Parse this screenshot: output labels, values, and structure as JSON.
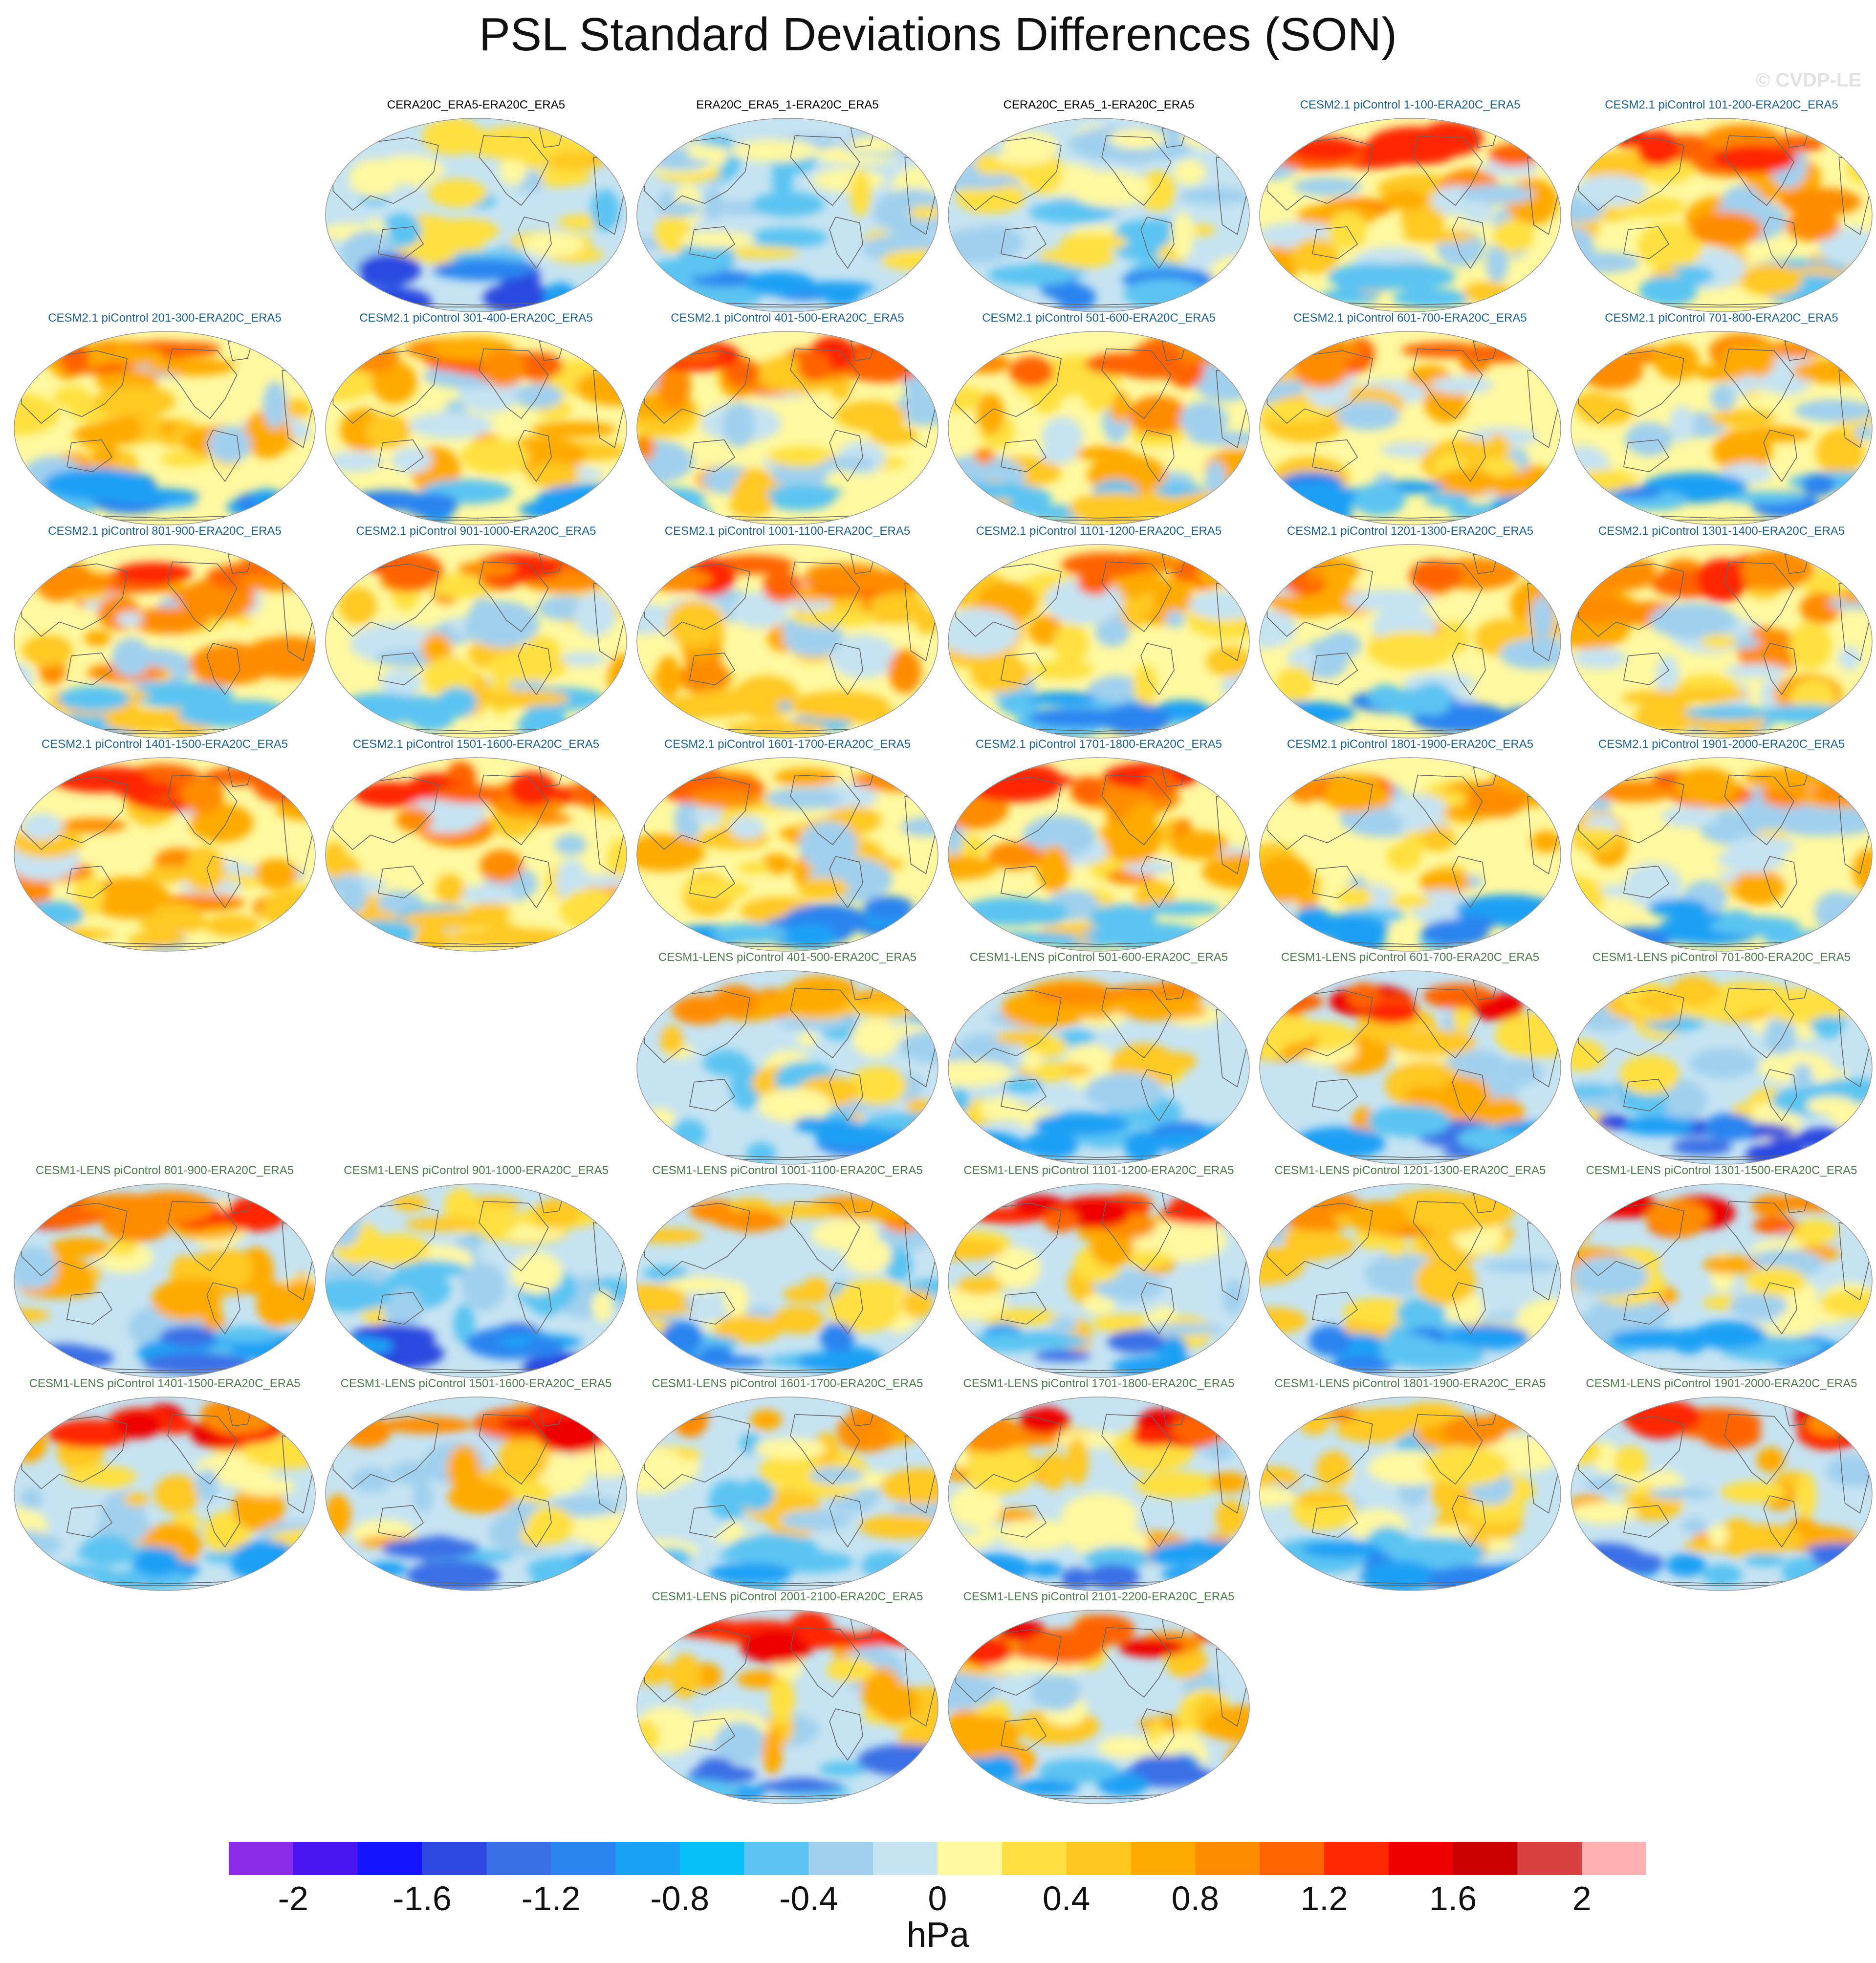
{
  "title": "PSL Standard Deviations Differences (SON)",
  "watermark": "© CVDP-LE",
  "colors": {
    "reanalysis_title": "#000000",
    "cesm2_title": "#1f5f8b",
    "cesm1_title": "#4e7a4e",
    "ocean_base": "#c6e3f2",
    "coast": "#666666",
    "outline": "#9a9a9a"
  },
  "panels": [
    {
      "label": "CERA20C_ERA5-ERA20C_ERA5",
      "group": "reanalysis",
      "row": 0,
      "col": 1,
      "pattern": "neg-south"
    },
    {
      "label": "ERA20C_ERA5_1-ERA20C_ERA5",
      "group": "reanalysis",
      "row": 0,
      "col": 2,
      "pattern": "neg-mild"
    },
    {
      "label": "CERA20C_ERA5_1-ERA20C_ERA5",
      "group": "reanalysis",
      "row": 0,
      "col": 3,
      "pattern": "neg-mild"
    },
    {
      "label": "CESM2.1 piControl 1-100-ERA20C_ERA5",
      "group": "cesm2",
      "row": 0,
      "col": 4,
      "pattern": "warm"
    },
    {
      "label": "CESM2.1 piControl 101-200-ERA20C_ERA5",
      "group": "cesm2",
      "row": 0,
      "col": 5,
      "pattern": "warm"
    },
    {
      "label": "CESM2.1 piControl 201-300-ERA20C_ERA5",
      "group": "cesm2",
      "row": 1,
      "col": 0,
      "pattern": "warm-mix"
    },
    {
      "label": "CESM2.1 piControl 301-400-ERA20C_ERA5",
      "group": "cesm2",
      "row": 1,
      "col": 1,
      "pattern": "warm-mix"
    },
    {
      "label": "CESM2.1 piControl 401-500-ERA20C_ERA5",
      "group": "cesm2",
      "row": 1,
      "col": 2,
      "pattern": "warm"
    },
    {
      "label": "CESM2.1 piControl 501-600-ERA20C_ERA5",
      "group": "cesm2",
      "row": 1,
      "col": 3,
      "pattern": "warm"
    },
    {
      "label": "CESM2.1 piControl 601-700-ERA20C_ERA5",
      "group": "cesm2",
      "row": 1,
      "col": 4,
      "pattern": "warm-mix"
    },
    {
      "label": "CESM2.1 piControl 701-800-ERA20C_ERA5",
      "group": "cesm2",
      "row": 1,
      "col": 5,
      "pattern": "warm-mix"
    },
    {
      "label": "CESM2.1 piControl 801-900-ERA20C_ERA5",
      "group": "cesm2",
      "row": 2,
      "col": 0,
      "pattern": "warm"
    },
    {
      "label": "CESM2.1 piControl 901-1000-ERA20C_ERA5",
      "group": "cesm2",
      "row": 2,
      "col": 1,
      "pattern": "warm"
    },
    {
      "label": "CESM2.1 piControl 1001-1100-ERA20C_ERA5",
      "group": "cesm2",
      "row": 2,
      "col": 2,
      "pattern": "warm"
    },
    {
      "label": "CESM2.1 piControl 1101-1200-ERA20C_ERA5",
      "group": "cesm2",
      "row": 2,
      "col": 3,
      "pattern": "warm-mix"
    },
    {
      "label": "CESM2.1 piControl 1201-1300-ERA20C_ERA5",
      "group": "cesm2",
      "row": 2,
      "col": 4,
      "pattern": "warm-mix"
    },
    {
      "label": "CESM2.1 piControl 1301-1400-ERA20C_ERA5",
      "group": "cesm2",
      "row": 2,
      "col": 5,
      "pattern": "warm"
    },
    {
      "label": "CESM2.1 piControl 1401-1500-ERA20C_ERA5",
      "group": "cesm2",
      "row": 3,
      "col": 0,
      "pattern": "warm"
    },
    {
      "label": "CESM2.1 piControl 1501-1600-ERA20C_ERA5",
      "group": "cesm2",
      "row": 3,
      "col": 1,
      "pattern": "warm"
    },
    {
      "label": "CESM2.1 piControl 1601-1700-ERA20C_ERA5",
      "group": "cesm2",
      "row": 3,
      "col": 2,
      "pattern": "warm-mix"
    },
    {
      "label": "CESM2.1 piControl 1701-1800-ERA20C_ERA5",
      "group": "cesm2",
      "row": 3,
      "col": 3,
      "pattern": "warm"
    },
    {
      "label": "CESM2.1 piControl 1801-1900-ERA20C_ERA5",
      "group": "cesm2",
      "row": 3,
      "col": 4,
      "pattern": "warm-mix"
    },
    {
      "label": "CESM2.1 piControl 1901-2000-ERA20C_ERA5",
      "group": "cesm2",
      "row": 3,
      "col": 5,
      "pattern": "warm-mix"
    },
    {
      "label": "CESM1-LENS piControl 401-500-ERA20C_ERA5",
      "group": "cesm1",
      "row": 4,
      "col": 2,
      "pattern": "cool"
    },
    {
      "label": "CESM1-LENS piControl 501-600-ERA20C_ERA5",
      "group": "cesm1",
      "row": 4,
      "col": 3,
      "pattern": "cool"
    },
    {
      "label": "CESM1-LENS piControl 601-700-ERA20C_ERA5",
      "group": "cesm1",
      "row": 4,
      "col": 4,
      "pattern": "cool-hot"
    },
    {
      "label": "CESM1-LENS piControl 701-800-ERA20C_ERA5",
      "group": "cesm1",
      "row": 4,
      "col": 5,
      "pattern": "neg-south"
    },
    {
      "label": "CESM1-LENS piControl 801-900-ERA20C_ERA5",
      "group": "cesm1",
      "row": 5,
      "col": 0,
      "pattern": "cool-hot"
    },
    {
      "label": "CESM1-LENS piControl 901-1000-ERA20C_ERA5",
      "group": "cesm1",
      "row": 5,
      "col": 1,
      "pattern": "neg-south"
    },
    {
      "label": "CESM1-LENS piControl 1001-1100-ERA20C_ERA5",
      "group": "cesm1",
      "row": 5,
      "col": 2,
      "pattern": "cool"
    },
    {
      "label": "CESM1-LENS piControl 1101-1200-ERA20C_ERA5",
      "group": "cesm1",
      "row": 5,
      "col": 3,
      "pattern": "cool-hot"
    },
    {
      "label": "CESM1-LENS piControl 1201-1300-ERA20C_ERA5",
      "group": "cesm1",
      "row": 5,
      "col": 4,
      "pattern": "cool"
    },
    {
      "label": "CESM1-LENS piControl 1301-1500-ERA20C_ERA5",
      "group": "cesm1",
      "row": 5,
      "col": 5,
      "pattern": "cool-hot"
    },
    {
      "label": "CESM1-LENS piControl 1401-1500-ERA20C_ERA5",
      "group": "cesm1",
      "row": 6,
      "col": 0,
      "pattern": "cool-hot"
    },
    {
      "label": "CESM1-LENS piControl 1501-1600-ERA20C_ERA5",
      "group": "cesm1",
      "row": 6,
      "col": 1,
      "pattern": "cool-hot"
    },
    {
      "label": "CESM1-LENS piControl 1601-1700-ERA20C_ERA5",
      "group": "cesm1",
      "row": 6,
      "col": 2,
      "pattern": "cool"
    },
    {
      "label": "CESM1-LENS piControl 1701-1800-ERA20C_ERA5",
      "group": "cesm1",
      "row": 6,
      "col": 3,
      "pattern": "cool-hot"
    },
    {
      "label": "CESM1-LENS piControl 1801-1900-ERA20C_ERA5",
      "group": "cesm1",
      "row": 6,
      "col": 4,
      "pattern": "cool"
    },
    {
      "label": "CESM1-LENS piControl 1901-2000-ERA20C_ERA5",
      "group": "cesm1",
      "row": 6,
      "col": 5,
      "pattern": "cool-hot"
    },
    {
      "label": "CESM1-LENS piControl 2001-2100-ERA20C_ERA5",
      "group": "cesm1",
      "row": 7,
      "col": 2,
      "pattern": "cool-hot"
    },
    {
      "label": "CESM1-LENS piControl 2101-2200-ERA20C_ERA5",
      "group": "cesm1",
      "row": 7,
      "col": 3,
      "pattern": "cool-hot"
    }
  ],
  "colorbar": {
    "colors": [
      "#8a2be8",
      "#4a16f0",
      "#1414ff",
      "#2c48e0",
      "#3a70e6",
      "#2b84f0",
      "#1aa0f5",
      "#08c0f8",
      "#5cc4f2",
      "#a0d0ee",
      "#c6e3f2",
      "#fff8a0",
      "#ffe040",
      "#ffc820",
      "#ffaa00",
      "#ff8c00",
      "#ff6400",
      "#ff2800",
      "#ee0000",
      "#c80000",
      "#d84040",
      "#ffb0b0"
    ],
    "tick_labels": [
      "-2",
      "-1.6",
      "-1.2",
      "-0.8",
      "-0.4",
      "0",
      "0.4",
      "0.8",
      "1.2",
      "1.6",
      "2"
    ],
    "unit": "hPa"
  }
}
